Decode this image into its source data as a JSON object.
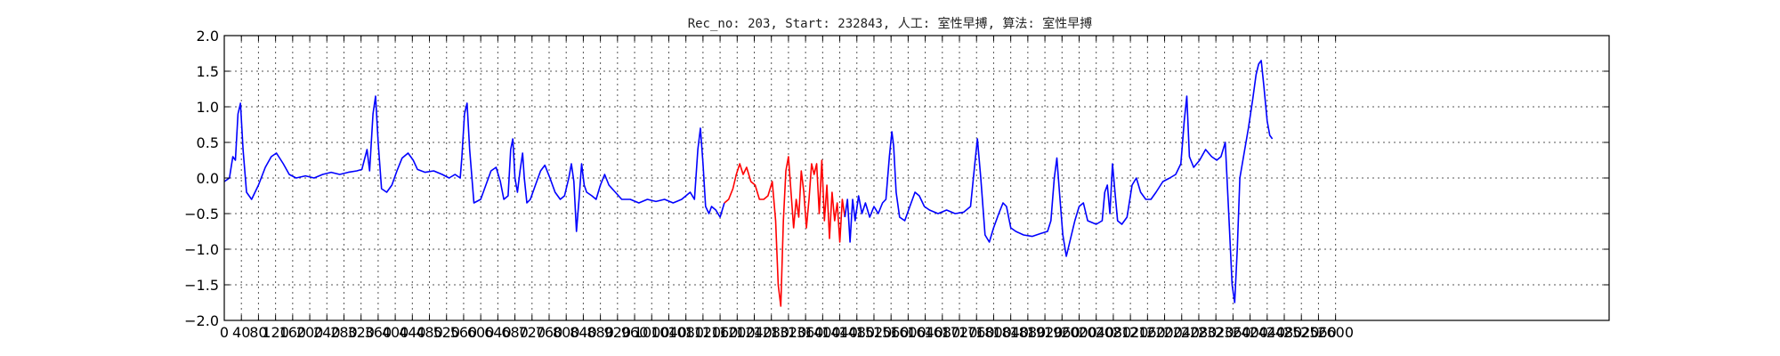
{
  "chart_data": {
    "type": "line",
    "title": "Rec_no: 203, Start: 232843, 人工: 室性早搏, 算法: 室性早搏",
    "xlabel": "",
    "ylabel": "",
    "xlim": [
      0,
      3240
    ],
    "ylim": [
      -2.0,
      2.0
    ],
    "grid": true,
    "yticks": [
      2.0,
      1.5,
      1.0,
      0.5,
      0.0,
      -0.5,
      -1.0,
      -1.5,
      -2.0
    ],
    "ytick_labels": [
      "2.0",
      "1.5",
      "1.0",
      "0.5",
      "0.0",
      "−0.5",
      "−1.0",
      "−1.5",
      "−2.0"
    ],
    "xticks": [
      0,
      40,
      80,
      120,
      160,
      200,
      240,
      280,
      320,
      360,
      400,
      440,
      480,
      520,
      560,
      600,
      640,
      680,
      720,
      760,
      800,
      840,
      880,
      920,
      960,
      1000,
      1040,
      1080,
      1120,
      1160,
      1200,
      1240,
      1280,
      1320,
      1360,
      1400,
      1440,
      1480,
      1520,
      1560,
      1600,
      1640,
      1680,
      1720,
      1760,
      1800,
      1840,
      1880,
      1920,
      1960,
      2000,
      2040,
      2080,
      2120,
      2160,
      2200,
      2240,
      2280,
      2320,
      2360,
      2400,
      2440,
      2480,
      2520,
      2560,
      2600
    ],
    "series": [
      {
        "color": "#0000ff",
        "points": [
          [
            0,
            -0.05
          ],
          [
            12,
            0.0
          ],
          [
            20,
            0.3
          ],
          [
            26,
            0.25
          ],
          [
            32,
            0.9
          ],
          [
            38,
            1.05
          ],
          [
            44,
            0.4
          ],
          [
            52,
            -0.2
          ],
          [
            64,
            -0.3
          ],
          [
            80,
            -0.1
          ],
          [
            96,
            0.15
          ],
          [
            110,
            0.3
          ],
          [
            122,
            0.35
          ],
          [
            138,
            0.2
          ],
          [
            152,
            0.05
          ],
          [
            168,
            0.0
          ],
          [
            190,
            0.03
          ],
          [
            210,
            0.0
          ],
          [
            230,
            0.05
          ],
          [
            250,
            0.08
          ],
          [
            270,
            0.05
          ],
          [
            290,
            0.08
          ],
          [
            310,
            0.1
          ],
          [
            322,
            0.12
          ],
          [
            334,
            0.4
          ],
          [
            340,
            0.1
          ],
          [
            348,
            0.9
          ],
          [
            354,
            1.15
          ],
          [
            360,
            0.5
          ],
          [
            368,
            -0.15
          ],
          [
            380,
            -0.2
          ],
          [
            392,
            -0.1
          ],
          [
            404,
            0.1
          ],
          [
            416,
            0.28
          ],
          [
            430,
            0.35
          ],
          [
            442,
            0.25
          ],
          [
            452,
            0.12
          ],
          [
            470,
            0.08
          ],
          [
            490,
            0.1
          ],
          [
            510,
            0.05
          ],
          [
            526,
            0.0
          ],
          [
            540,
            0.05
          ],
          [
            552,
            0.0
          ],
          [
            556,
            0.3
          ],
          [
            562,
            0.9
          ],
          [
            568,
            1.05
          ],
          [
            574,
            0.4
          ],
          [
            584,
            -0.35
          ],
          [
            600,
            -0.3
          ],
          [
            612,
            -0.1
          ],
          [
            624,
            0.1
          ],
          [
            636,
            0.15
          ],
          [
            646,
            -0.05
          ],
          [
            654,
            -0.3
          ],
          [
            664,
            -0.25
          ],
          [
            670,
            0.4
          ],
          [
            675,
            0.55
          ],
          [
            680,
            0.0
          ],
          [
            686,
            -0.2
          ],
          [
            692,
            0.1
          ],
          [
            698,
            0.35
          ],
          [
            702,
            0.0
          ],
          [
            708,
            -0.35
          ],
          [
            716,
            -0.3
          ],
          [
            728,
            -0.1
          ],
          [
            740,
            0.1
          ],
          [
            750,
            0.18
          ],
          [
            762,
            0.0
          ],
          [
            774,
            -0.2
          ],
          [
            786,
            -0.3
          ],
          [
            796,
            -0.25
          ],
          [
            806,
            0.0
          ],
          [
            812,
            0.2
          ],
          [
            818,
            -0.05
          ],
          [
            824,
            -0.75
          ],
          [
            830,
            -0.3
          ],
          [
            836,
            0.2
          ],
          [
            842,
            -0.1
          ],
          [
            848,
            -0.2
          ],
          [
            860,
            -0.25
          ],
          [
            870,
            -0.3
          ],
          [
            880,
            -0.1
          ],
          [
            890,
            0.05
          ],
          [
            900,
            -0.1
          ],
          [
            915,
            -0.2
          ],
          [
            930,
            -0.3
          ],
          [
            950,
            -0.3
          ],
          [
            970,
            -0.35
          ],
          [
            990,
            -0.3
          ],
          [
            1010,
            -0.33
          ],
          [
            1030,
            -0.3
          ],
          [
            1050,
            -0.35
          ],
          [
            1070,
            -0.3
          ],
          [
            1080,
            -0.25
          ],
          [
            1090,
            -0.2
          ],
          [
            1100,
            -0.3
          ],
          [
            1108,
            0.4
          ],
          [
            1114,
            0.7
          ],
          [
            1120,
            0.2
          ],
          [
            1126,
            -0.4
          ],
          [
            1134,
            -0.5
          ],
          [
            1140,
            -0.4
          ],
          [
            1150,
            -0.45
          ],
          [
            1160,
            -0.55
          ],
          [
            1170,
            -0.35
          ]
        ]
      },
      {
        "color": "#ff0000",
        "points": [
          [
            1170,
            -0.35
          ],
          [
            1180,
            -0.3
          ],
          [
            1190,
            -0.15
          ],
          [
            1198,
            0.05
          ],
          [
            1206,
            0.2
          ],
          [
            1214,
            0.05
          ],
          [
            1222,
            0.15
          ],
          [
            1232,
            -0.05
          ],
          [
            1242,
            -0.1
          ],
          [
            1252,
            -0.3
          ],
          [
            1262,
            -0.3
          ],
          [
            1272,
            -0.25
          ],
          [
            1282,
            -0.05
          ],
          [
            1290,
            -0.6
          ],
          [
            1296,
            -1.5
          ],
          [
            1302,
            -1.8
          ],
          [
            1308,
            -0.6
          ],
          [
            1314,
            0.1
          ],
          [
            1320,
            0.3
          ],
          [
            1326,
            -0.2
          ],
          [
            1332,
            -0.7
          ],
          [
            1338,
            -0.3
          ],
          [
            1344,
            -0.55
          ],
          [
            1350,
            0.1
          ],
          [
            1356,
            -0.2
          ],
          [
            1362,
            -0.7
          ],
          [
            1368,
            -0.3
          ],
          [
            1374,
            0.2
          ],
          [
            1380,
            0.05
          ],
          [
            1386,
            0.2
          ],
          [
            1392,
            -0.5
          ],
          [
            1398,
            0.25
          ],
          [
            1404,
            -0.6
          ],
          [
            1410,
            -0.1
          ],
          [
            1416,
            -0.85
          ],
          [
            1422,
            -0.2
          ],
          [
            1428,
            -0.6
          ],
          [
            1434,
            -0.35
          ],
          [
            1440,
            -0.9
          ],
          [
            1446,
            -0.3
          ],
          [
            1452,
            -0.55
          ]
        ]
      },
      {
        "color": "#0000ff",
        "points": [
          [
            1452,
            -0.55
          ],
          [
            1458,
            -0.3
          ],
          [
            1464,
            -0.9
          ],
          [
            1470,
            -0.3
          ],
          [
            1476,
            -0.6
          ],
          [
            1484,
            -0.25
          ],
          [
            1492,
            -0.5
          ],
          [
            1500,
            -0.35
          ],
          [
            1510,
            -0.55
          ],
          [
            1520,
            -0.4
          ],
          [
            1530,
            -0.5
          ],
          [
            1540,
            -0.35
          ],
          [
            1548,
            -0.3
          ],
          [
            1556,
            0.3
          ],
          [
            1562,
            0.65
          ],
          [
            1566,
            0.45
          ],
          [
            1572,
            -0.2
          ],
          [
            1580,
            -0.55
          ],
          [
            1592,
            -0.6
          ],
          [
            1604,
            -0.4
          ],
          [
            1616,
            -0.2
          ],
          [
            1626,
            -0.25
          ],
          [
            1638,
            -0.4
          ],
          [
            1650,
            -0.45
          ],
          [
            1670,
            -0.5
          ],
          [
            1690,
            -0.45
          ],
          [
            1710,
            -0.5
          ],
          [
            1730,
            -0.48
          ],
          [
            1746,
            -0.4
          ],
          [
            1756,
            0.2
          ],
          [
            1762,
            0.55
          ],
          [
            1770,
            0.0
          ],
          [
            1780,
            -0.8
          ],
          [
            1790,
            -0.9
          ],
          [
            1800,
            -0.7
          ],
          [
            1812,
            -0.5
          ],
          [
            1822,
            -0.35
          ],
          [
            1830,
            -0.4
          ],
          [
            1840,
            -0.7
          ],
          [
            1852,
            -0.75
          ],
          [
            1870,
            -0.8
          ],
          [
            1890,
            -0.82
          ],
          [
            1910,
            -0.78
          ],
          [
            1926,
            -0.75
          ],
          [
            1934,
            -0.6
          ],
          [
            1942,
            0.0
          ],
          [
            1948,
            0.28
          ],
          [
            1954,
            -0.2
          ],
          [
            1962,
            -0.8
          ],
          [
            1970,
            -1.1
          ],
          [
            1980,
            -0.85
          ],
          [
            1990,
            -0.6
          ],
          [
            2000,
            -0.4
          ],
          [
            2010,
            -0.35
          ],
          [
            2020,
            -0.6
          ],
          [
            2040,
            -0.65
          ],
          [
            2054,
            -0.6
          ],
          [
            2060,
            -0.2
          ],
          [
            2066,
            -0.1
          ],
          [
            2072,
            -0.5
          ],
          [
            2078,
            0.2
          ],
          [
            2084,
            -0.2
          ],
          [
            2090,
            -0.6
          ],
          [
            2100,
            -0.65
          ],
          [
            2112,
            -0.55
          ],
          [
            2124,
            -0.1
          ],
          [
            2134,
            0.0
          ],
          [
            2144,
            -0.2
          ],
          [
            2156,
            -0.3
          ],
          [
            2168,
            -0.3
          ],
          [
            2180,
            -0.2
          ],
          [
            2196,
            -0.05
          ],
          [
            2212,
            0.0
          ],
          [
            2226,
            0.05
          ],
          [
            2238,
            0.2
          ],
          [
            2246,
            0.8
          ],
          [
            2252,
            1.15
          ],
          [
            2258,
            0.3
          ],
          [
            2268,
            0.15
          ],
          [
            2282,
            0.25
          ],
          [
            2296,
            0.4
          ],
          [
            2310,
            0.3
          ],
          [
            2322,
            0.25
          ],
          [
            2332,
            0.3
          ],
          [
            2342,
            0.5
          ],
          [
            2350,
            -0.5
          ],
          [
            2358,
            -1.5
          ],
          [
            2364,
            -1.75
          ],
          [
            2370,
            -1.0
          ],
          [
            2376,
            0.0
          ],
          [
            2386,
            0.35
          ],
          [
            2396,
            0.7
          ],
          [
            2406,
            1.1
          ],
          [
            2414,
            1.45
          ],
          [
            2420,
            1.6
          ],
          [
            2426,
            1.65
          ],
          [
            2432,
            1.3
          ],
          [
            2440,
            0.8
          ],
          [
            2446,
            0.6
          ],
          [
            2452,
            0.55
          ]
        ]
      }
    ]
  }
}
